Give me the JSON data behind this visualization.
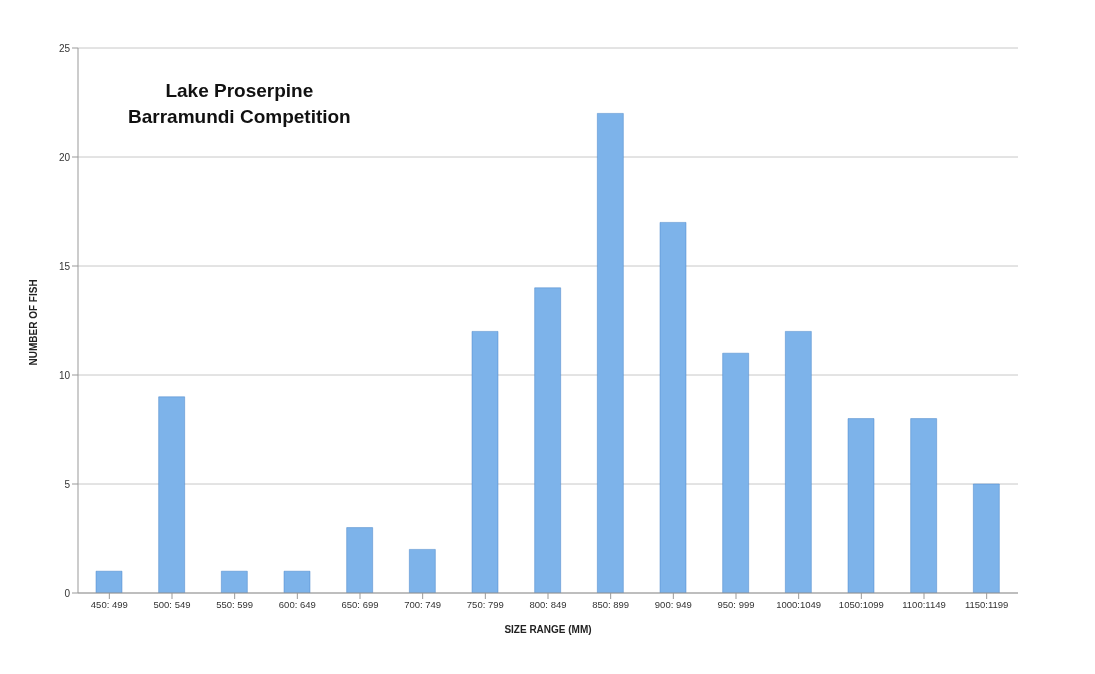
{
  "chart_data": {
    "type": "bar",
    "title": "Lake Proserpine\nBarramundi Competition",
    "xlabel": "SIZE RANGE (MM)",
    "ylabel": "NUMBER OF FISH",
    "categories": [
      "450: 499",
      "500: 549",
      "550: 599",
      "600: 649",
      "650: 699",
      "700: 749",
      "750: 799",
      "800: 849",
      "850: 899",
      "900: 949",
      "950: 999",
      "1000:1049",
      "1050:1099",
      "1100:1149",
      "1150:1199"
    ],
    "values": [
      1,
      9,
      1,
      1,
      3,
      2,
      12,
      14,
      22,
      17,
      11,
      12,
      8,
      8,
      5
    ],
    "color": "#7db3ea",
    "ylim": [
      0,
      25
    ],
    "yticks": [
      0,
      5,
      10,
      15,
      20,
      25
    ],
    "grid": "y"
  }
}
